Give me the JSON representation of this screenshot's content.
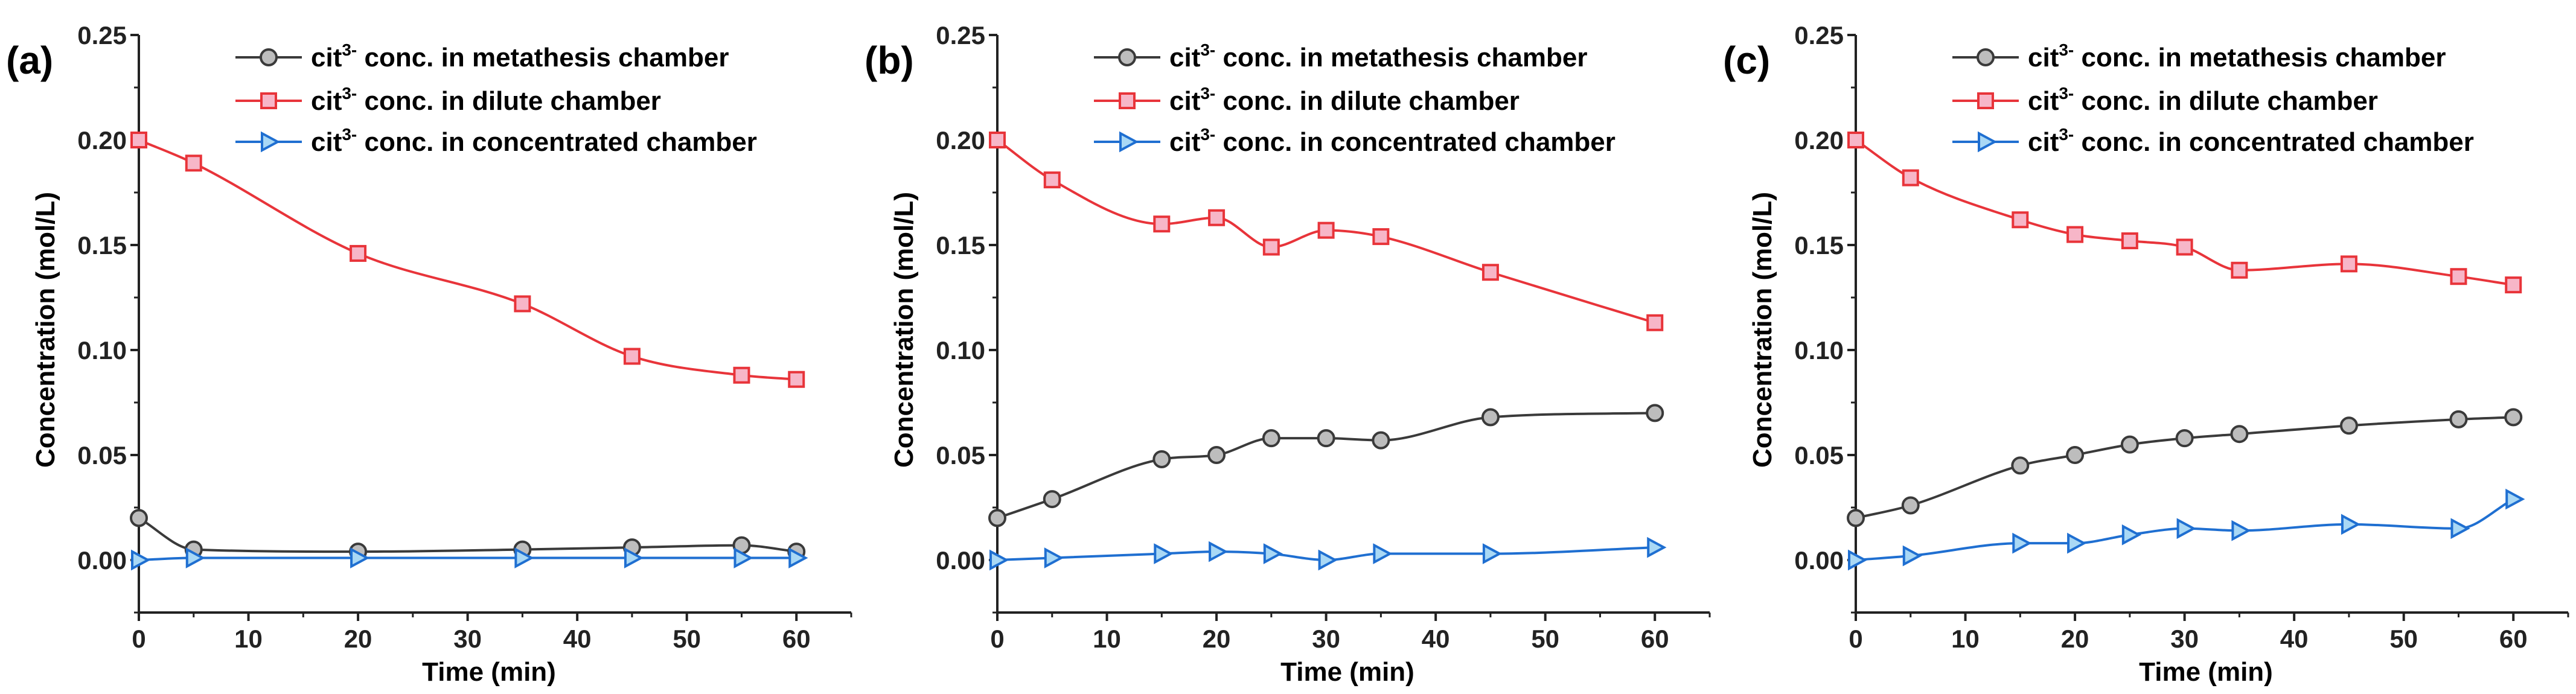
{
  "chart_data": [
    {
      "type": "line",
      "panel_label": "(a)",
      "xlabel": "Time (min)",
      "ylabel": "Concentration (mol/L)",
      "xlim": [
        0,
        65
      ],
      "ylim": [
        -0.025,
        0.25
      ],
      "xticks": [
        "0",
        "10",
        "20",
        "30",
        "40",
        "50",
        "60"
      ],
      "yticks": [
        "0.00",
        "0.05",
        "0.10",
        "0.15",
        "0.20",
        "0.25"
      ],
      "legend_position": "top-right",
      "series": [
        {
          "name_prefix": "cit",
          "name_sup": "3-",
          "name_suffix": " conc. in metathesis chamber",
          "marker": "circle",
          "color": "#3a3a3a",
          "fill": "#bdbdbd",
          "x": [
            0,
            5,
            20,
            35,
            45,
            55,
            60
          ],
          "y": [
            0.02,
            0.005,
            0.004,
            0.005,
            0.006,
            0.007,
            0.004
          ]
        },
        {
          "name_prefix": "cit",
          "name_sup": "3-",
          "name_suffix": " conc. in dilute chamber",
          "marker": "square",
          "color": "#e8343a",
          "fill": "#f7b6c8",
          "x": [
            0,
            5,
            20,
            35,
            45,
            55,
            60
          ],
          "y": [
            0.2,
            0.189,
            0.146,
            0.122,
            0.097,
            0.088,
            0.086
          ]
        },
        {
          "name_prefix": "cit",
          "name_sup": "3-",
          "name_suffix": " conc. in concentrated chamber",
          "marker": "triangle",
          "color": "#1f6fd1",
          "fill": "#a9d8f5",
          "x": [
            0,
            5,
            20,
            35,
            45,
            55,
            60
          ],
          "y": [
            0.0,
            0.001,
            0.001,
            0.001,
            0.001,
            0.001,
            0.001
          ]
        }
      ]
    },
    {
      "type": "line",
      "panel_label": "(b)",
      "xlabel": "Time (min)",
      "ylabel": "Concentration (mol/L)",
      "xlim": [
        0,
        65
      ],
      "ylim": [
        -0.025,
        0.25
      ],
      "xticks": [
        "0",
        "10",
        "20",
        "30",
        "40",
        "50",
        "60"
      ],
      "yticks": [
        "0.00",
        "0.05",
        "0.10",
        "0.15",
        "0.20",
        "0.25"
      ],
      "legend_position": "top-right",
      "series": [
        {
          "name_prefix": "cit",
          "name_sup": "3-",
          "name_suffix": " conc. in metathesis chamber",
          "marker": "circle",
          "color": "#3a3a3a",
          "fill": "#bdbdbd",
          "x": [
            0,
            5,
            15,
            20,
            25,
            30,
            35,
            45,
            60
          ],
          "y": [
            0.02,
            0.029,
            0.048,
            0.05,
            0.058,
            0.058,
            0.057,
            0.068,
            0.07
          ]
        },
        {
          "name_prefix": "cit",
          "name_sup": "3-",
          "name_suffix": " conc. in dilute chamber",
          "marker": "square",
          "color": "#e8343a",
          "fill": "#f7b6c8",
          "x": [
            0,
            5,
            15,
            20,
            25,
            30,
            35,
            45,
            60
          ],
          "y": [
            0.2,
            0.181,
            0.16,
            0.163,
            0.149,
            0.157,
            0.154,
            0.137,
            0.113
          ]
        },
        {
          "name_prefix": "cit",
          "name_sup": "3-",
          "name_suffix": " conc. in concentrated chamber",
          "marker": "triangle",
          "color": "#1f6fd1",
          "fill": "#a9d8f5",
          "x": [
            0,
            5,
            15,
            20,
            25,
            30,
            35,
            45,
            60
          ],
          "y": [
            0.0,
            0.001,
            0.003,
            0.004,
            0.003,
            0.0,
            0.003,
            0.003,
            0.006
          ]
        }
      ]
    },
    {
      "type": "line",
      "panel_label": "(c)",
      "xlabel": "Time (min)",
      "ylabel": "Concentration (mol/L)",
      "xlim": [
        0,
        65
      ],
      "ylim": [
        -0.025,
        0.25
      ],
      "xticks": [
        "0",
        "10",
        "20",
        "30",
        "40",
        "50",
        "60"
      ],
      "yticks": [
        "0.00",
        "0.05",
        "0.10",
        "0.15",
        "0.20",
        "0.25"
      ],
      "legend_position": "top-right",
      "series": [
        {
          "name_prefix": "cit",
          "name_sup": "3-",
          "name_suffix": " conc. in metathesis chamber",
          "marker": "circle",
          "color": "#3a3a3a",
          "fill": "#bdbdbd",
          "x": [
            0,
            5,
            15,
            20,
            25,
            30,
            35,
            45,
            55,
            60
          ],
          "y": [
            0.02,
            0.026,
            0.045,
            0.05,
            0.055,
            0.058,
            0.06,
            0.064,
            0.067,
            0.068
          ]
        },
        {
          "name_prefix": "cit",
          "name_sup": "3-",
          "name_suffix": " conc. in dilute chamber",
          "marker": "square",
          "color": "#e8343a",
          "fill": "#f7b6c8",
          "x": [
            0,
            5,
            15,
            20,
            25,
            30,
            35,
            45,
            55,
            60
          ],
          "y": [
            0.2,
            0.182,
            0.162,
            0.155,
            0.152,
            0.149,
            0.138,
            0.141,
            0.135,
            0.131
          ]
        },
        {
          "name_prefix": "cit",
          "name_sup": "3-",
          "name_suffix": " conc. in concentrated chamber",
          "marker": "triangle",
          "color": "#1f6fd1",
          "fill": "#a9d8f5",
          "x": [
            0,
            5,
            15,
            20,
            25,
            30,
            35,
            45,
            55,
            60
          ],
          "y": [
            0.0,
            0.002,
            0.008,
            0.008,
            0.012,
            0.015,
            0.014,
            0.017,
            0.015,
            0.029
          ]
        }
      ]
    }
  ]
}
